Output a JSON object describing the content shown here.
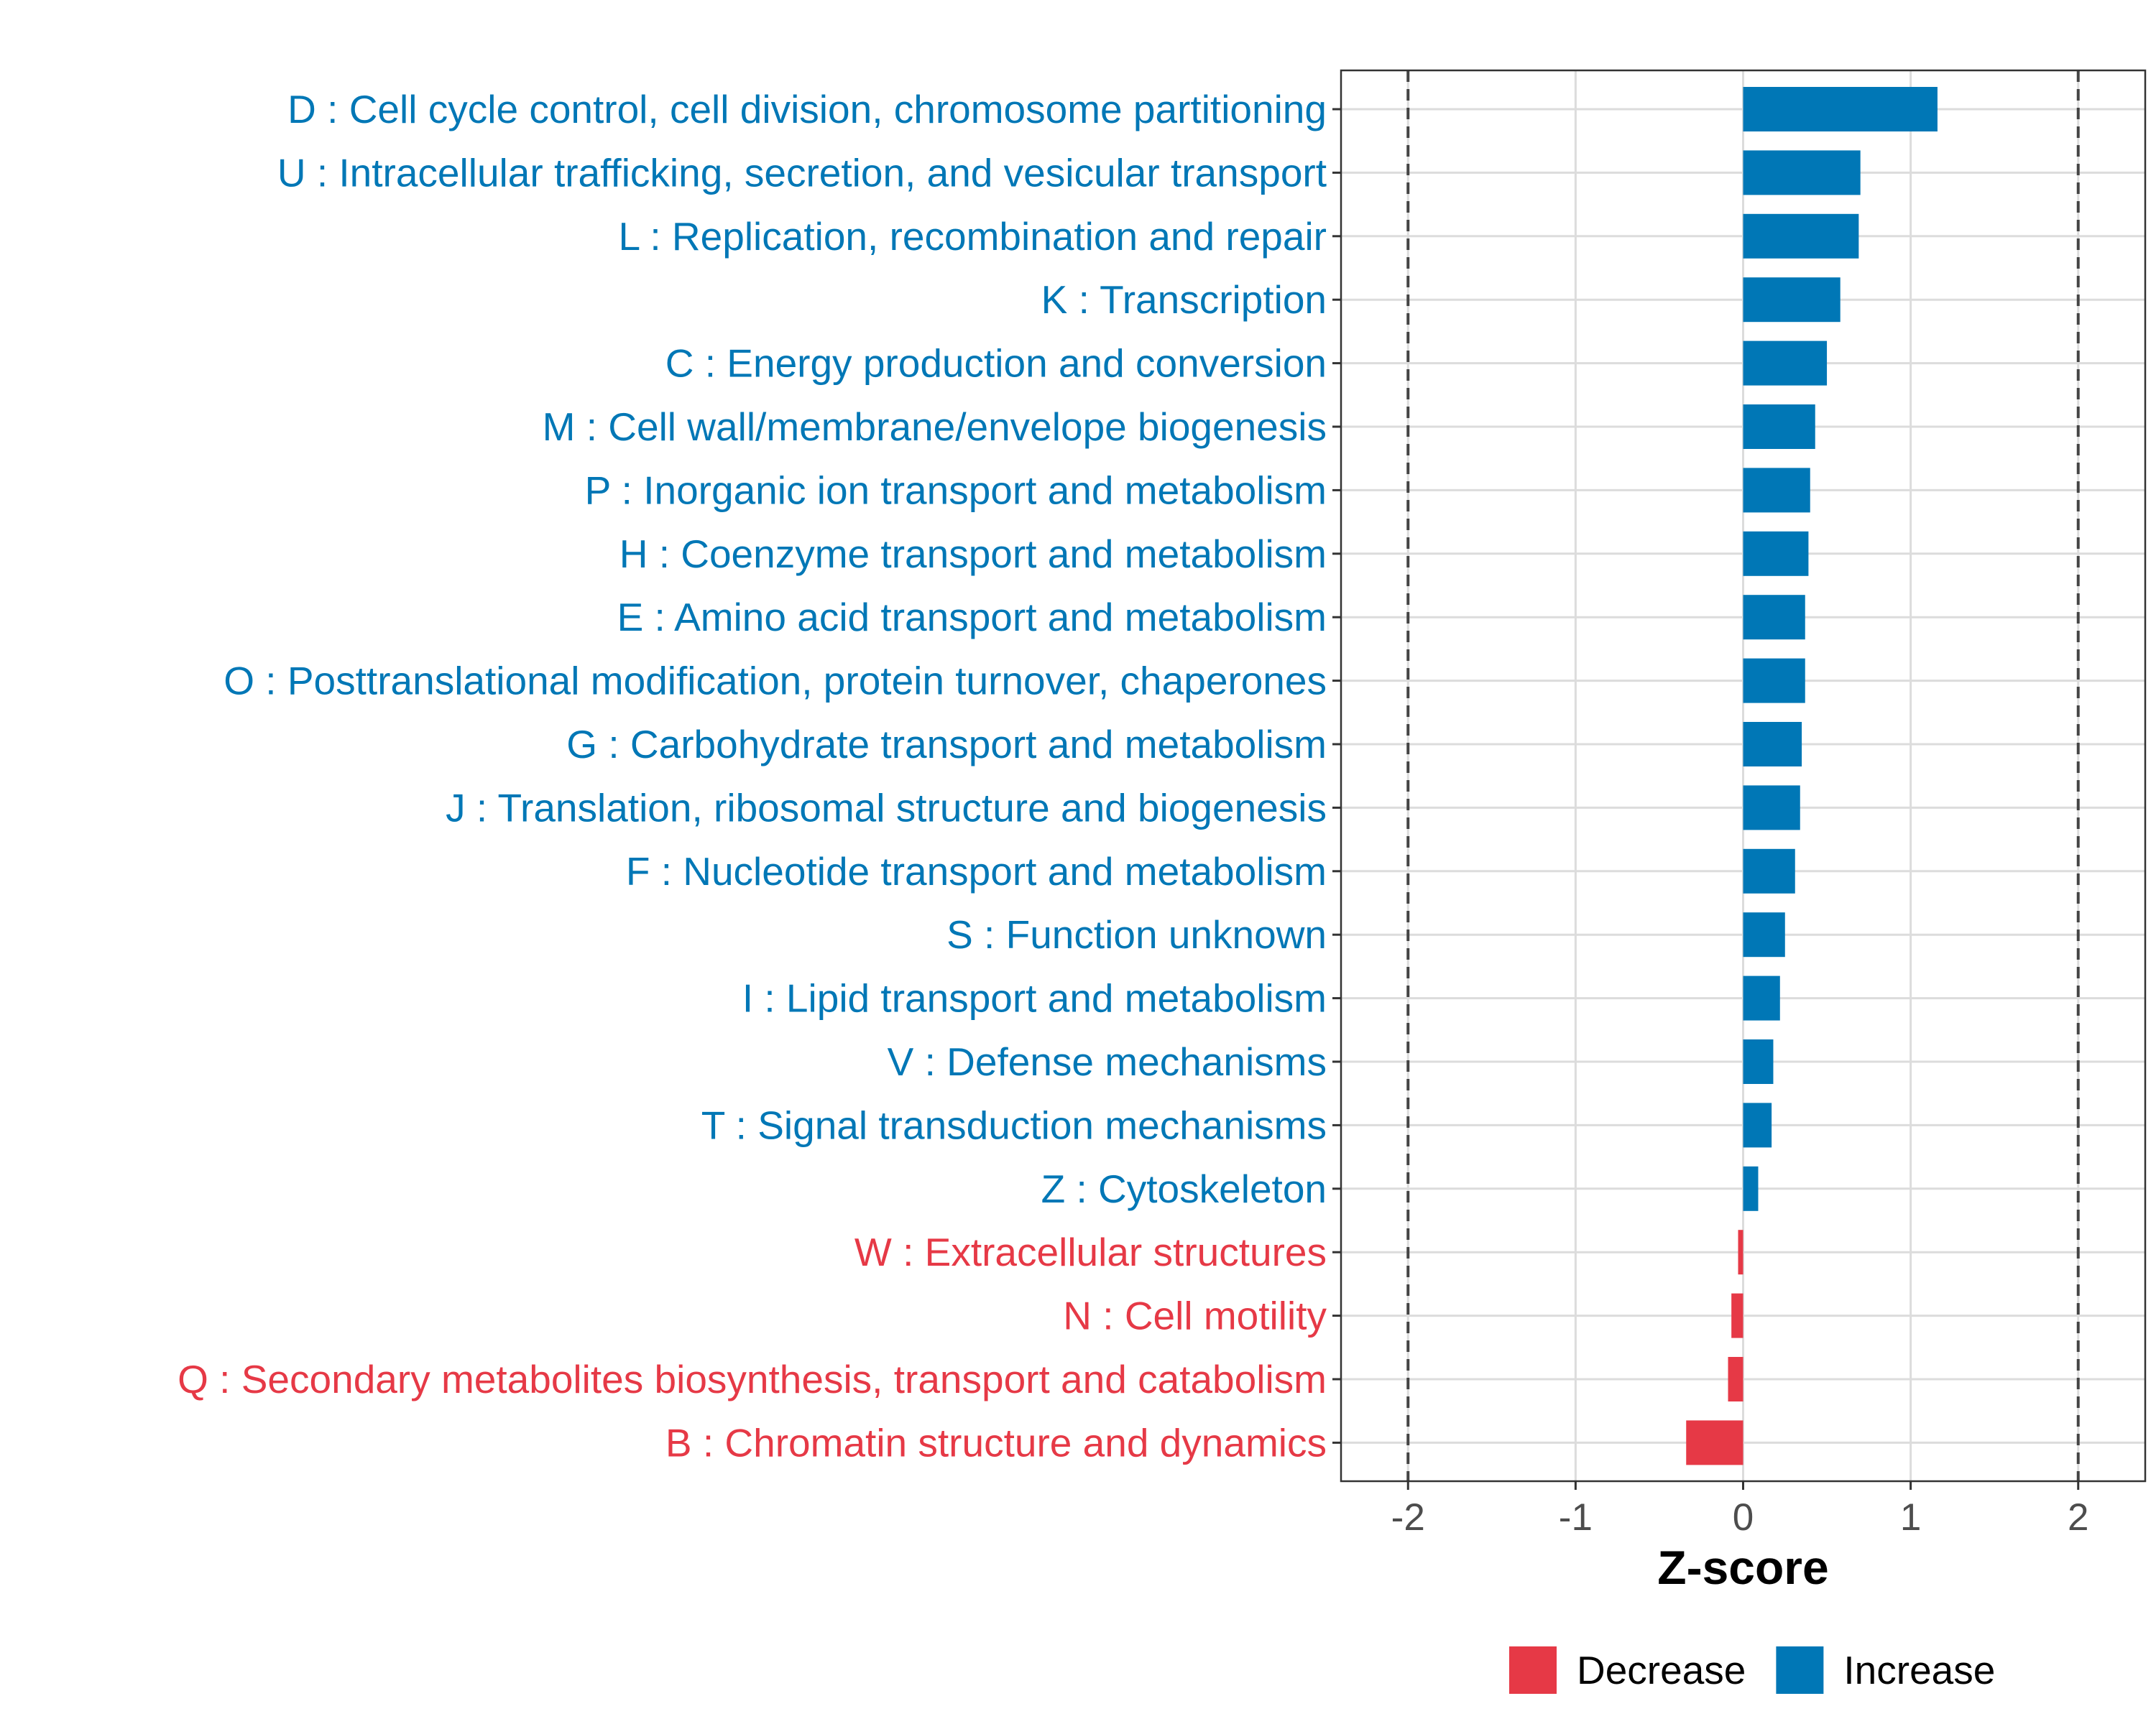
{
  "chart_data": {
    "type": "bar",
    "orientation": "horizontal",
    "title": "",
    "xlabel": "Z-score",
    "ylabel": "",
    "xlim": [
      -2.4,
      2.4
    ],
    "x_ticks": [
      -2,
      -1,
      0,
      1,
      2
    ],
    "x_tick_labels": [
      "-2",
      "-1",
      "0",
      "1",
      "2"
    ],
    "reference_lines": [
      -2,
      2
    ],
    "grid": true,
    "categories": [
      "D : Cell cycle control, cell division, chromosome partitioning",
      "U : Intracellular trafficking, secretion, and vesicular transport",
      "L : Replication, recombination and repair",
      "K : Transcription",
      "C : Energy production and conversion",
      "M : Cell wall/membrane/envelope biogenesis",
      "P : Inorganic ion transport and metabolism",
      "H : Coenzyme transport and metabolism",
      "E : Amino acid transport and metabolism",
      "O : Posttranslational modification, protein turnover, chaperones",
      "G : Carbohydrate transport and metabolism",
      "J : Translation, ribosomal structure and biogenesis",
      "F : Nucleotide transport and metabolism",
      "S : Function unknown",
      "I : Lipid transport and metabolism",
      "V : Defense mechanisms",
      "T : Signal transduction mechanisms",
      "Z : Cytoskeleton",
      "W : Extracellular structures",
      "N : Cell motility",
      "Q : Secondary metabolites biosynthesis, transport and catabolism",
      "B : Chromatin structure and dynamics"
    ],
    "values": [
      1.16,
      0.7,
      0.69,
      0.58,
      0.5,
      0.43,
      0.4,
      0.39,
      0.37,
      0.37,
      0.35,
      0.34,
      0.31,
      0.25,
      0.22,
      0.18,
      0.17,
      0.09,
      -0.03,
      -0.07,
      -0.09,
      -0.34
    ],
    "groups": [
      "Increase",
      "Increase",
      "Increase",
      "Increase",
      "Increase",
      "Increase",
      "Increase",
      "Increase",
      "Increase",
      "Increase",
      "Increase",
      "Increase",
      "Increase",
      "Increase",
      "Increase",
      "Increase",
      "Increase",
      "Increase",
      "Decrease",
      "Decrease",
      "Decrease",
      "Decrease"
    ],
    "legend": {
      "position": "bottom",
      "entries": [
        {
          "label": "Decrease",
          "color": "#E63946"
        },
        {
          "label": "Increase",
          "color": "#0077B6"
        }
      ]
    },
    "colors": {
      "Increase": "#0077B6",
      "Decrease": "#E63946"
    }
  }
}
